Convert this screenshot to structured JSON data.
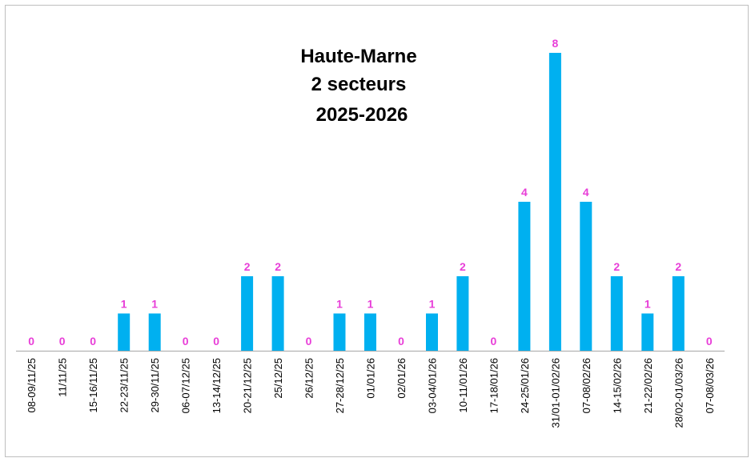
{
  "chart_data": {
    "type": "bar",
    "title": [
      "Haute-Marne",
      "2 secteurs",
      "2025-2026"
    ],
    "categories": [
      "08-09/11/25",
      "11/11/25",
      "15-16/11/25",
      "22-23/11/25",
      "29-30/11/25",
      "06-07/12/25",
      "13-14/12/25",
      "20-21/12/25",
      "25/12/25",
      "26/12/25",
      "27-28/12/25",
      "01/01/26",
      "02/01/26",
      "03-04/01/26",
      "10-11/01/26",
      "17-18/01/26",
      "24-25/01/26",
      "31/01-01/02/26",
      "07-08/02/26",
      "14-15/02/26",
      "21-22/02/26",
      "28/02-01/03/26",
      "07-08/03/26"
    ],
    "values": [
      0,
      0,
      0,
      1,
      1,
      0,
      0,
      2,
      2,
      0,
      1,
      1,
      0,
      1,
      2,
      0,
      4,
      8,
      4,
      2,
      1,
      2,
      0
    ],
    "ylim": [
      0,
      8
    ],
    "grid": false,
    "legend": "none",
    "colors": {
      "bar": "#00B0F0",
      "data_label": "#E83ED8",
      "axis": "#a6a6a6",
      "border": "#bfbfbf"
    }
  }
}
